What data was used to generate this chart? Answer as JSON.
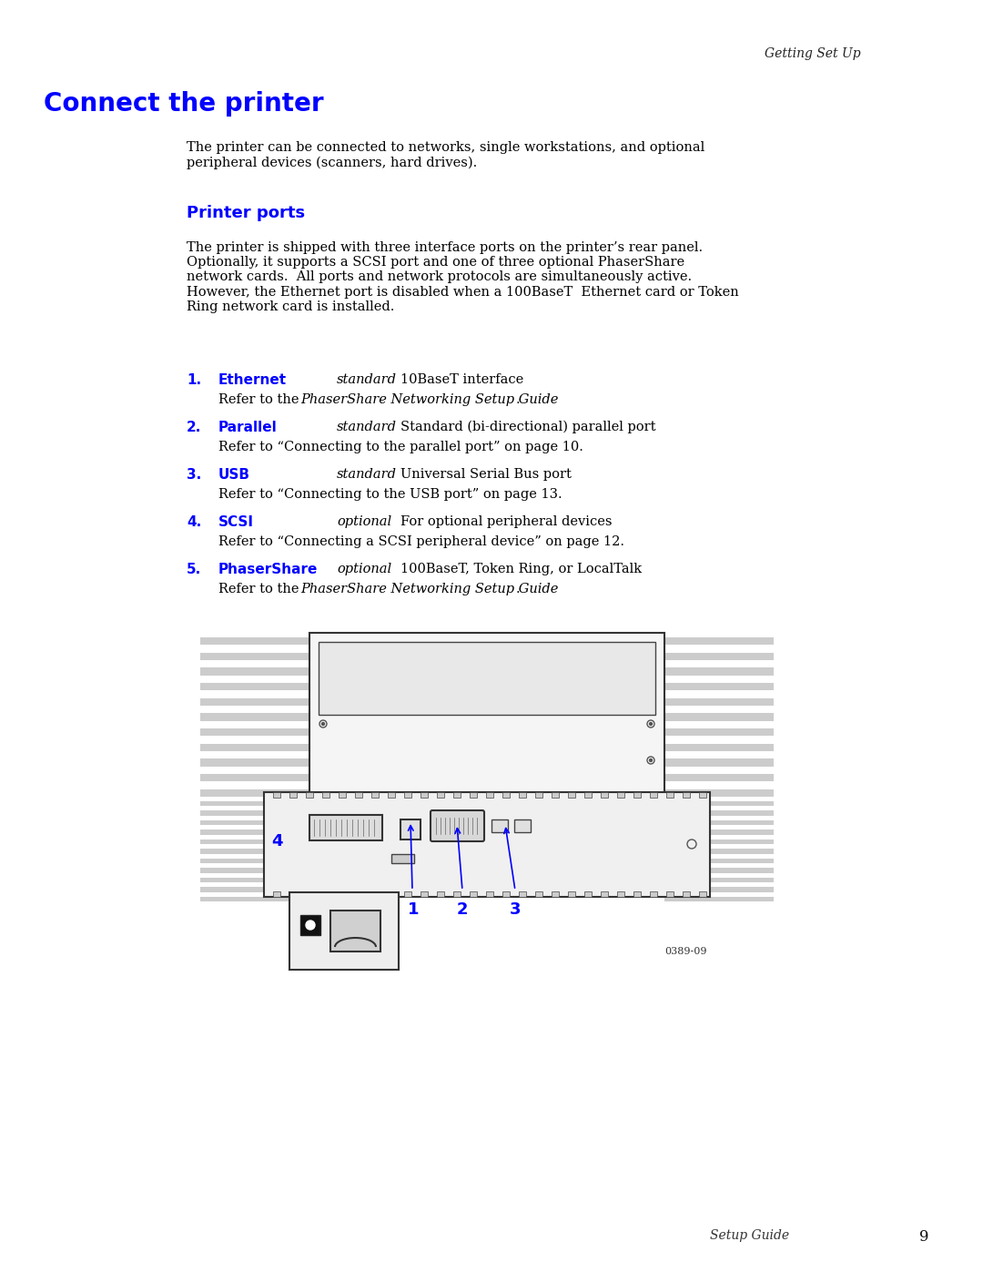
{
  "bg_color": "#ffffff",
  "header_italic": "Getting Set Up",
  "title": "Connect the printer",
  "title_color": "#0000FF",
  "title_fontsize": 20,
  "body_intro": "The printer can be connected to networks, single workstations, and optional\nperipheral devices (scanners, hard drives).",
  "subtitle": "Printer ports",
  "subtitle_color": "#0000FF",
  "subtitle_fontsize": 13,
  "body_ports": "The printer is shipped with three interface ports on the printer’s rear panel.\nOptionally, it supports a SCSI port and one of three optional PhaserShare\nnetwork cards.  All ports and network protocols are simultaneously active.\nHowever, the Ethernet port is disabled when a 100BaseT  Ethernet card or Token\nRing network card is installed.",
  "port_items": [
    {
      "num": "1.",
      "label": "Ethernet",
      "type": "standard",
      "desc": "10BaseT interface",
      "ref": "Refer to the PhaserShare Networking Setup Guide."
    },
    {
      "num": "2.",
      "label": "Parallel",
      "type": "standard",
      "desc": "Standard (bi-directional) parallel port",
      "ref": "Refer to “Connecting to the parallel port” on page 10."
    },
    {
      "num": "3.",
      "label": "USB",
      "type": "standard",
      "desc": "Universal Serial Bus port",
      "ref": "Refer to “Connecting to the USB port” on page 13."
    },
    {
      "num": "4.",
      "label": "SCSI",
      "type": "optional",
      "desc": "For optional peripheral devices",
      "ref": "Refer to “Connecting a SCSI peripheral device” on page 12."
    },
    {
      "num": "5.",
      "label": "PhaserShare",
      "type": "optional",
      "desc": "100BaseT, Token Ring, or LocalTalk",
      "ref": "Refer to the PhaserShare Networking Setup Guide."
    }
  ],
  "footer_left": "Setup Guide",
  "footer_page": "9",
  "caption": "0389-09",
  "label_color": "#0000FF",
  "body_color": "#000000",
  "body_fontsize": 10.5,
  "num_fontsize": 11,
  "ref_italic_parts": [
    "PhaserShare Networking Setup Guide",
    "PhaserShare Networking Setup Guide"
  ]
}
